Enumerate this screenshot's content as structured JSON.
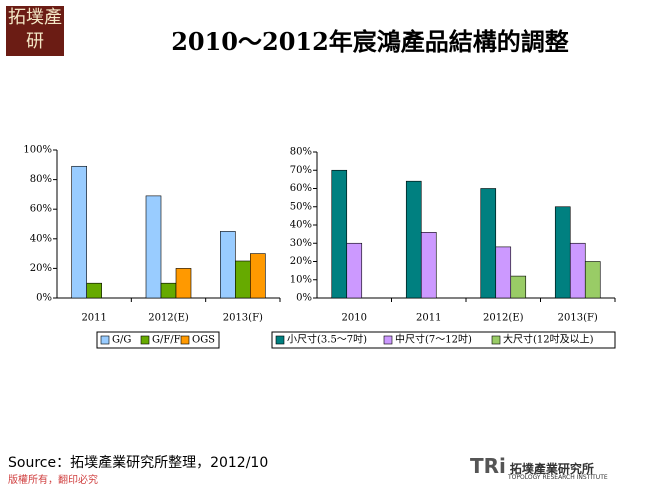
{
  "header": {
    "logo": "拓墣產研",
    "title": "2010～2012年宸鴻產品結構的調整"
  },
  "chart_data": [
    {
      "type": "bar",
      "categories": [
        "2011",
        "2012(E)",
        "2013(F)"
      ],
      "series": [
        {
          "name": "G/G",
          "color": "#99ccff",
          "values": [
            89,
            69,
            45
          ]
        },
        {
          "name": "G/F/F",
          "color": "#66aa00",
          "values": [
            10,
            10,
            25
          ]
        },
        {
          "name": "OGS",
          "color": "#ff9900",
          "values": [
            null,
            20,
            30
          ]
        }
      ],
      "ylim": [
        0,
        100
      ],
      "yticks": [
        {
          "value": 0,
          "label": "0%"
        },
        {
          "value": 20,
          "label": "20%"
        },
        {
          "value": 40,
          "label": "40%"
        },
        {
          "value": 60,
          "label": "60%"
        },
        {
          "value": 80,
          "label": "80%"
        },
        {
          "value": 100,
          "label": "100%"
        }
      ],
      "legend": "bottom"
    },
    {
      "type": "bar",
      "categories": [
        "2010",
        "2011",
        "2012(E)",
        "2013(F)"
      ],
      "series": [
        {
          "name": "小尺寸(3.5～7吋)",
          "color": "#008080",
          "values": [
            70,
            64,
            60,
            50
          ]
        },
        {
          "name": "中尺寸(7～12吋)",
          "color": "#cc99ff",
          "values": [
            30,
            36,
            28,
            30
          ]
        },
        {
          "name": "大尺寸(12吋及以上)",
          "color": "#99cc66",
          "values": [
            null,
            null,
            12,
            20
          ]
        }
      ],
      "ylim": [
        0,
        80
      ],
      "yticks": [
        {
          "value": 0,
          "label": "0%"
        },
        {
          "value": 10,
          "label": "10%"
        },
        {
          "value": 20,
          "label": "20%"
        },
        {
          "value": 30,
          "label": "30%"
        },
        {
          "value": 40,
          "label": "40%"
        },
        {
          "value": 50,
          "label": "50%"
        },
        {
          "value": 60,
          "label": "60%"
        },
        {
          "value": 70,
          "label": "70%"
        },
        {
          "value": 80,
          "label": "80%"
        }
      ],
      "legend": "bottom"
    }
  ],
  "footer": {
    "source": "Source：拓墣產業研究所整理，2012/10",
    "copyright": "版權所有，翻印必究",
    "brand": "TRi",
    "brand_name": "拓墣產業研究所",
    "brand_en": "TOPOLOGY RESEARCH INSTITUTE"
  }
}
